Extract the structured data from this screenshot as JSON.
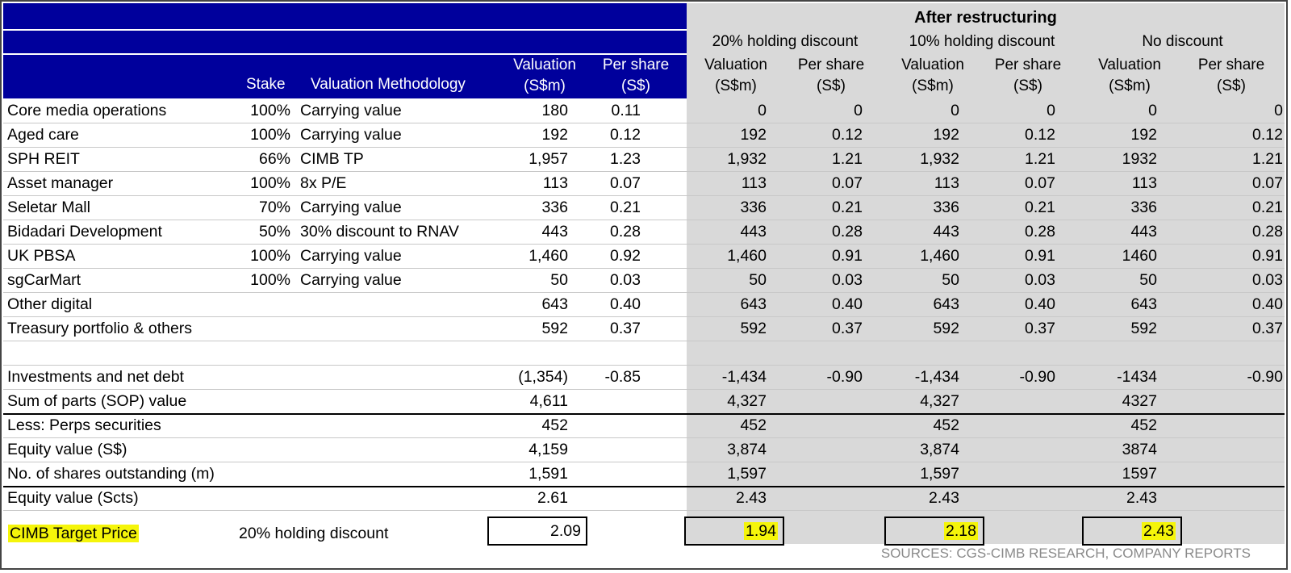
{
  "header": {
    "group_title": "After restructuring",
    "groups": [
      "20% holding discount",
      "10% holding discount",
      "No discount"
    ],
    "col_stake": "Stake",
    "col_method": "Valuation Methodology",
    "col_valuation_1": "Valuation",
    "col_valuation_2": "(S$m)",
    "col_pershare_1": "Per share",
    "col_pershare_2": "(S$)"
  },
  "rows": [
    {
      "label": "Core media operations",
      "stake": "100%",
      "method": "Carrying value",
      "v0": "180",
      "p0": "0.11",
      "v1": "0",
      "p1": "0",
      "v2": "0",
      "p2": "0",
      "v3": "0",
      "p3": "0"
    },
    {
      "label": "Aged care",
      "stake": "100%",
      "method": "Carrying value",
      "v0": "192",
      "p0": "0.12",
      "v1": "192",
      "p1": "0.12",
      "v2": "192",
      "p2": "0.12",
      "v3": "192",
      "p3": "0.12"
    },
    {
      "label": "SPH REIT",
      "stake": "66%",
      "method": "CIMB TP",
      "v0": "1,957",
      "p0": "1.23",
      "v1": "1,932",
      "p1": "1.21",
      "v2": "1,932",
      "p2": "1.21",
      "v3": "1932",
      "p3": "1.21"
    },
    {
      "label": "Asset manager",
      "stake": "100%",
      "method": "8x P/E",
      "v0": "113",
      "p0": "0.07",
      "v1": "113",
      "p1": "0.07",
      "v2": "113",
      "p2": "0.07",
      "v3": "113",
      "p3": "0.07"
    },
    {
      "label": "Seletar Mall",
      "stake": "70%",
      "method": "Carrying value",
      "v0": "336",
      "p0": "0.21",
      "v1": "336",
      "p1": "0.21",
      "v2": "336",
      "p2": "0.21",
      "v3": "336",
      "p3": "0.21"
    },
    {
      "label": "Bidadari Development",
      "stake": "50%",
      "method": "30% discount to RNAV",
      "v0": "443",
      "p0": "0.28",
      "v1": "443",
      "p1": "0.28",
      "v2": "443",
      "p2": "0.28",
      "v3": "443",
      "p3": "0.28"
    },
    {
      "label": "UK PBSA",
      "stake": "100%",
      "method": "Carrying value",
      "v0": "1,460",
      "p0": "0.92",
      "v1": "1,460",
      "p1": "0.91",
      "v2": "1,460",
      "p2": "0.91",
      "v3": "1460",
      "p3": "0.91"
    },
    {
      "label": "sgCarMart",
      "stake": "100%",
      "method": "Carrying value",
      "v0": "50",
      "p0": "0.03",
      "v1": "50",
      "p1": "0.03",
      "v2": "50",
      "p2": "0.03",
      "v3": "50",
      "p3": "0.03"
    },
    {
      "label": "Other digital",
      "stake": "",
      "method": "",
      "v0": "643",
      "p0": "0.40",
      "v1": "643",
      "p1": "0.40",
      "v2": "643",
      "p2": "0.40",
      "v3": "643",
      "p3": "0.40"
    },
    {
      "label": "Treasury portfolio & others",
      "stake": "",
      "method": "",
      "v0": "592",
      "p0": "0.37",
      "v1": "592",
      "p1": "0.37",
      "v2": "592",
      "p2": "0.37",
      "v3": "592",
      "p3": "0.37"
    },
    {
      "label": "",
      "stake": "",
      "method": "",
      "v0": "",
      "p0": "",
      "v1": "",
      "p1": "",
      "v2": "",
      "p2": "",
      "v3": "",
      "p3": ""
    },
    {
      "label": "Investments and net debt",
      "stake": "",
      "method": "",
      "v0": "(1,354)",
      "p0": "-0.85",
      "v1": "-1,434",
      "p1": "-0.90",
      "v2": "-1,434",
      "p2": "-0.90",
      "v3": "-1434",
      "p3": "-0.90"
    },
    {
      "label": "Sum of parts (SOP) value",
      "stake": "",
      "method": "",
      "v0": "4,611",
      "p0": "",
      "v1": "4,327",
      "p1": "",
      "v2": "4,327",
      "p2": "",
      "v3": "4327",
      "p3": ""
    },
    {
      "label": "Less: Perps securities",
      "stake": "",
      "method": "",
      "v0": "452",
      "p0": "",
      "v1": "452",
      "p1": "",
      "v2": "452",
      "p2": "",
      "v3": "452",
      "p3": ""
    },
    {
      "label": "Equity value (S$)",
      "stake": "",
      "method": "",
      "v0": "4,159",
      "p0": "",
      "v1": "3,874",
      "p1": "",
      "v2": "3,874",
      "p2": "",
      "v3": "3874",
      "p3": ""
    },
    {
      "label": "No. of shares outstanding (m)",
      "stake": "",
      "method": "",
      "v0": "1,591",
      "p0": "",
      "v1": "1,597",
      "p1": "",
      "v2": "1,597",
      "p2": "",
      "v3": "1597",
      "p3": ""
    },
    {
      "label": "Equity value (Scts)",
      "stake": "",
      "method": "",
      "v0": "2.61",
      "p0": "",
      "v1": "2.43",
      "p1": "",
      "v2": "2.43",
      "p2": "",
      "v3": "2.43",
      "p3": ""
    }
  ],
  "target": {
    "label": "CIMB Target Price",
    "method": "20% holding discount",
    "v0": "2.09",
    "v1": "1.94",
    "v2": "2.18",
    "v3": "2.43"
  },
  "source": "SOURCES: CGS-CIMB RESEARCH, COMPANY REPORTS",
  "colors": {
    "header_blue": "#00009c",
    "shade_grey": "#d9d9d9",
    "highlight_yellow": "#f5f50a"
  }
}
